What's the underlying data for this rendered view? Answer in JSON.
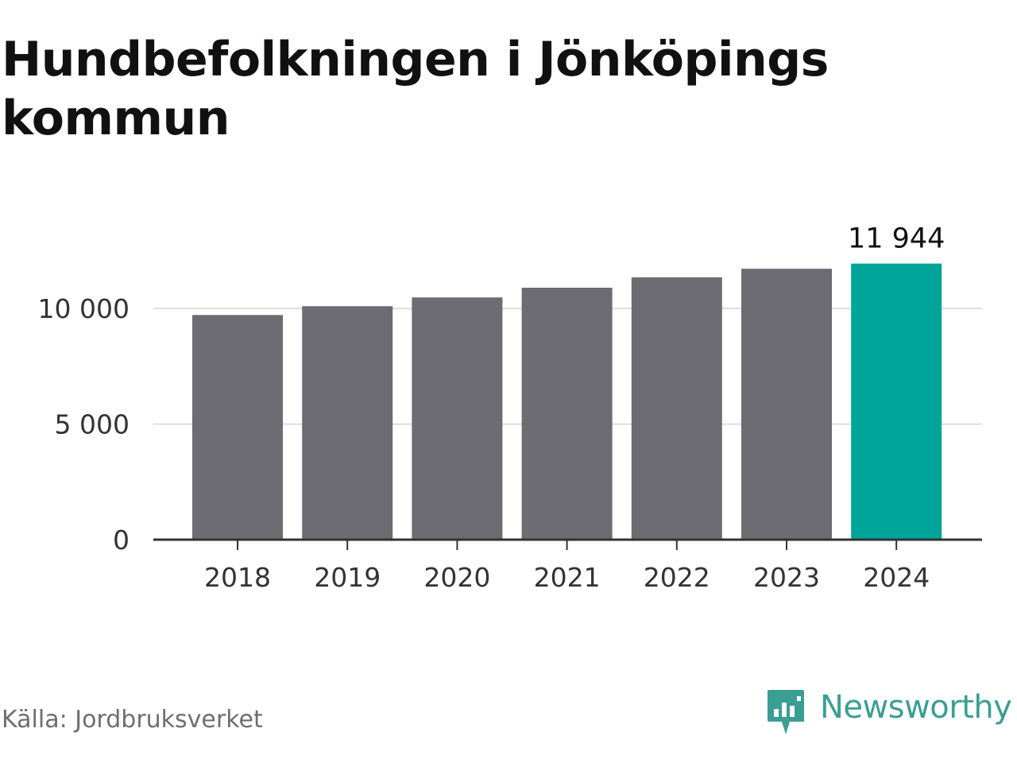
{
  "title": "Hundbefolkningen i Jönköpings kommun",
  "source": "Källa: Jordbruksverket",
  "brand": {
    "name": "Newsworthy",
    "icon": "newsworthy-logo-icon",
    "color": "#3a9e94"
  },
  "colors": {
    "bar": "#6d6c72",
    "highlight": "#00a59a",
    "grid": "#dddddd",
    "axis": "#333333"
  },
  "chart_data": {
    "type": "bar",
    "title": "Hundbefolkningen i Jönköpings kommun",
    "xlabel": "",
    "ylabel": "",
    "categories": [
      "2018",
      "2019",
      "2020",
      "2021",
      "2022",
      "2023",
      "2024"
    ],
    "values": [
      9720,
      10100,
      10480,
      10900,
      11350,
      11720,
      11944
    ],
    "highlight_index": 6,
    "data_labels": [
      "",
      "",
      "",
      "",
      "",
      "",
      "11 944"
    ],
    "ylim": [
      0,
      12000
    ],
    "yticks": [
      0,
      5000,
      10000
    ],
    "ytick_labels": [
      "0",
      "5 000",
      "10 000"
    ],
    "grid": true,
    "legend": "none"
  }
}
